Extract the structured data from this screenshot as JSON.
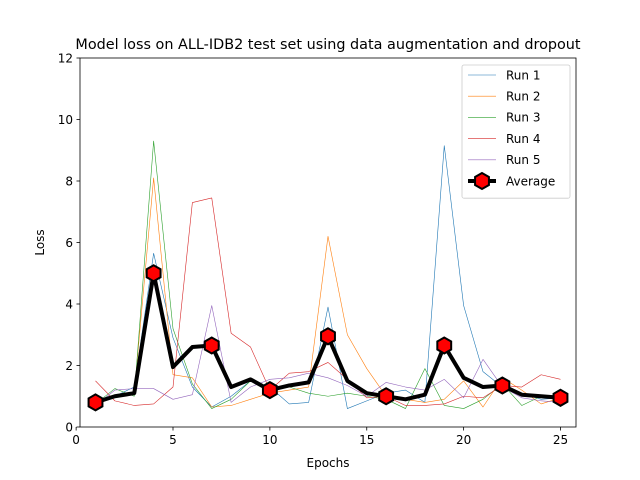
{
  "chart_data": {
    "type": "line",
    "title": "Model loss on ALL-IDB2 test set using data augmentation and dropout",
    "xlabel": "Epochs",
    "ylabel": "Loss",
    "xlim": [
      0.2,
      25.8
    ],
    "ylim": [
      0,
      12
    ],
    "xticks": [
      0,
      5,
      10,
      15,
      20,
      25
    ],
    "yticks": [
      0,
      2,
      4,
      6,
      8,
      10,
      12
    ],
    "grid": false,
    "legend_position": "top-right",
    "x": [
      1,
      2,
      3,
      4,
      5,
      6,
      7,
      8,
      9,
      10,
      11,
      12,
      13,
      14,
      15,
      16,
      17,
      18,
      19,
      20,
      21,
      22,
      23,
      24,
      25
    ],
    "series": [
      {
        "name": "Run 1",
        "color": "#1f77b4",
        "linewidth": 0.6,
        "values": [
          0.85,
          1.0,
          1.3,
          5.65,
          2.9,
          1.3,
          0.65,
          1.0,
          1.5,
          1.3,
          0.75,
          0.8,
          3.9,
          0.6,
          0.85,
          1.1,
          1.2,
          0.8,
          9.15,
          3.95,
          1.8,
          1.3,
          1.1,
          0.9,
          0.95
        ]
      },
      {
        "name": "Run 2",
        "color": "#ff7f0e",
        "linewidth": 0.6,
        "values": [
          0.7,
          1.0,
          1.1,
          8.1,
          1.7,
          1.6,
          0.65,
          0.7,
          0.9,
          1.1,
          1.2,
          1.3,
          6.2,
          3.0,
          1.9,
          1.0,
          0.9,
          0.8,
          0.9,
          1.5,
          0.65,
          1.6,
          1.2,
          0.75,
          0.95
        ]
      },
      {
        "name": "Run 3",
        "color": "#2ca02c",
        "linewidth": 0.6,
        "values": [
          0.75,
          1.25,
          1.0,
          9.3,
          3.2,
          1.4,
          0.6,
          0.9,
          1.5,
          1.2,
          1.3,
          1.1,
          1.0,
          1.1,
          1.0,
          0.9,
          0.6,
          1.9,
          0.7,
          0.6,
          0.9,
          1.4,
          0.7,
          1.0,
          0.95
        ]
      },
      {
        "name": "Run 4",
        "color": "#d62728",
        "linewidth": 0.6,
        "values": [
          1.5,
          0.85,
          0.7,
          0.75,
          1.3,
          7.3,
          7.45,
          3.05,
          2.6,
          1.2,
          1.75,
          1.8,
          2.1,
          1.55,
          0.95,
          1.0,
          0.7,
          0.7,
          0.75,
          1.0,
          0.95,
          1.35,
          1.3,
          1.7,
          1.55
        ]
      },
      {
        "name": "Run 5",
        "color": "#9467bd",
        "linewidth": 0.6,
        "values": [
          0.7,
          1.2,
          1.25,
          1.25,
          0.9,
          1.05,
          3.95,
          0.8,
          1.3,
          1.55,
          1.6,
          1.75,
          1.6,
          1.35,
          1.0,
          1.45,
          1.3,
          1.2,
          1.55,
          0.95,
          2.2,
          1.3,
          0.95,
          0.85,
          0.8
        ]
      },
      {
        "name": "Average",
        "color": "#000000",
        "linewidth": 4,
        "marker": "hexagon",
        "marker_face": "#ff0000",
        "markevery": 3,
        "values": [
          0.8,
          1.0,
          1.1,
          5.0,
          1.95,
          2.6,
          2.65,
          1.3,
          1.55,
          1.2,
          1.35,
          1.45,
          2.95,
          1.5,
          1.1,
          1.0,
          0.9,
          1.05,
          2.65,
          1.6,
          1.3,
          1.35,
          1.05,
          1.0,
          0.95
        ]
      }
    ]
  }
}
